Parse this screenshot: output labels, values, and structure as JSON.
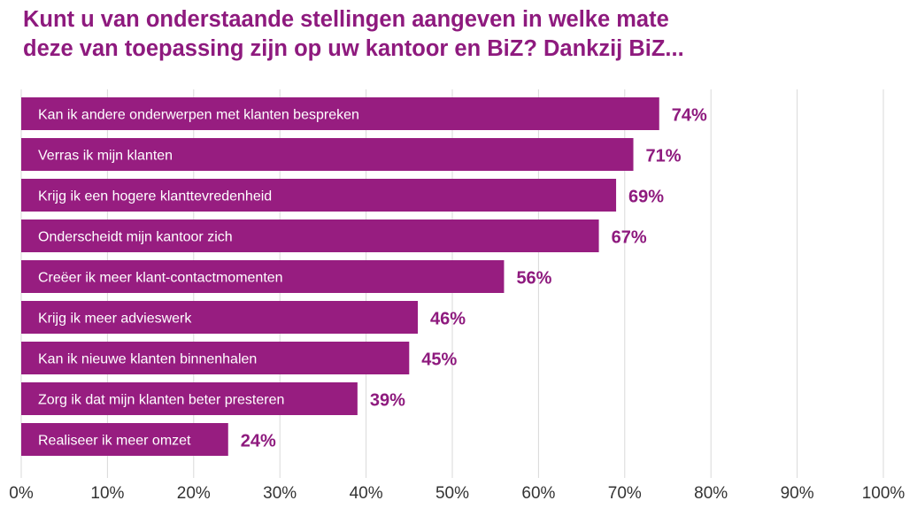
{
  "title_line1": "Kunt u van onderstaande stellingen aangeven in welke mate",
  "title_line2": "deze van toepassing zijn op uw kantoor en BiZ? Dankzij BiZ...",
  "bar_color": "#971d80",
  "accent_color": "#8e1a7e",
  "chart_data": {
    "type": "bar",
    "orientation": "horizontal",
    "title": "Kunt u van onderstaande stellingen aangeven in welke mate deze van toepassing zijn op uw kantoor en BiZ? Dankzij BiZ...",
    "categories": [
      "Kan ik andere onderwerpen met klanten bespreken",
      "Verras ik mijn klanten",
      "Krijg ik een hogere klanttevredenheid",
      "Onderscheidt mijn kantoor zich",
      "Creëer ik meer klant-contactmomenten",
      "Krijg ik meer advieswerk",
      "Kan ik nieuwe klanten binnenhalen",
      "Zorg ik dat mijn klanten beter presteren",
      "Realiseer ik meer omzet"
    ],
    "values": [
      74,
      71,
      69,
      67,
      56,
      46,
      45,
      39,
      24
    ],
    "value_labels": [
      "74%",
      "71%",
      "69%",
      "67%",
      "56%",
      "46%",
      "45%",
      "39%",
      "24%"
    ],
    "xlim": [
      0,
      100
    ],
    "x_ticks": [
      "0%",
      "10%",
      "20%",
      "30%",
      "40%",
      "50%",
      "60%",
      "70%",
      "80%",
      "90%",
      "100%"
    ],
    "grid": true,
    "legend": "none"
  }
}
